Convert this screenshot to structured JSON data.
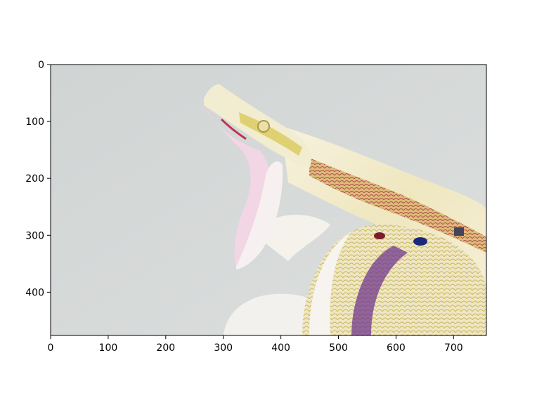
{
  "figure": {
    "image_subject": "snake-open-mouth-photo",
    "image_colors": {
      "background": "#d2d6d5",
      "background_light": "#dde0df",
      "body_cream": "#f4f0d6",
      "body_white": "#f7f3ee",
      "pattern_yellow": "#d9c95a",
      "pattern_red": "#a8303a",
      "pattern_purple": "#6a2c8c",
      "mouth_pink": "#f3d6e6",
      "dark_blue": "#1a2a7a"
    },
    "x_axis": {
      "ticks": [
        0,
        100,
        200,
        300,
        400,
        500,
        600,
        700
      ],
      "range": [
        0,
        757
      ]
    },
    "y_axis": {
      "ticks": [
        0,
        100,
        200,
        300,
        400
      ],
      "range": [
        0,
        476
      ]
    }
  }
}
